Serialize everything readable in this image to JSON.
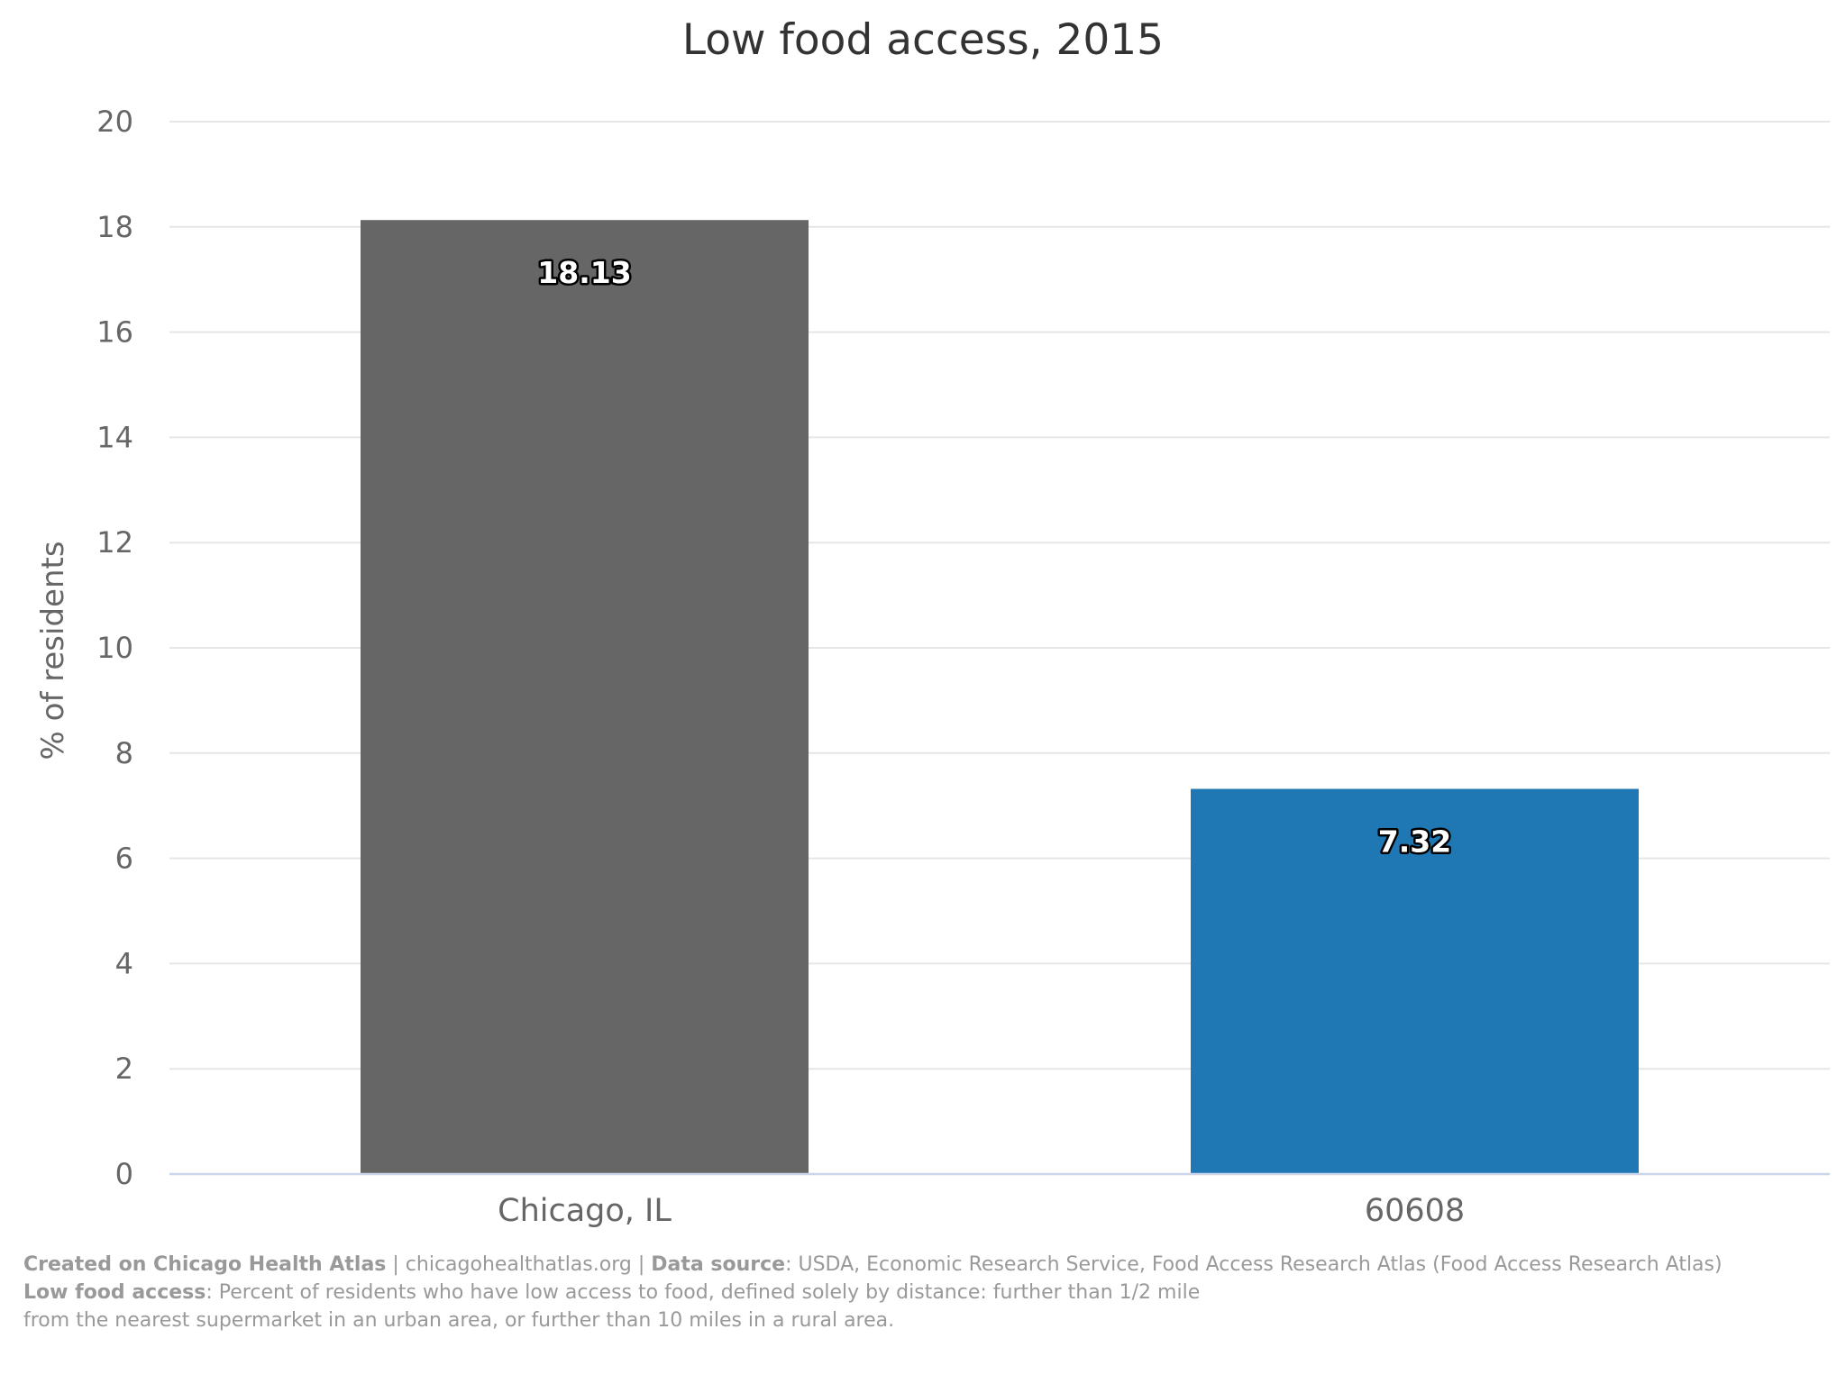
{
  "chart_data": {
    "type": "bar",
    "title": "Low food access, 2015",
    "xlabel": "",
    "ylabel": "% of residents",
    "ylim": [
      0,
      20
    ],
    "yticks": [
      "0",
      "2",
      "4",
      "6",
      "8",
      "10",
      "12",
      "14",
      "16",
      "18",
      "20"
    ],
    "categories": [
      "Chicago, IL",
      "60608"
    ],
    "values": [
      18.13,
      7.32
    ],
    "value_labels": [
      "18.13",
      "7.32"
    ],
    "colors": [
      "#666666",
      "#1f77b4"
    ],
    "grid": true,
    "legend": "none"
  },
  "credits": {
    "created_label": "Created on Chicago Health Atlas",
    "sep1": " | ",
    "site": "chicagohealthatlas.org",
    "sep2": " | ",
    "source_label": "Data source",
    "source_text": ": USDA, Economic Research Service, Food Access Research Atlas (Food Access Research Atlas)",
    "def_label": "Low food access",
    "def_line1": ": Percent of residents who have low access to food, defined solely by distance: further than 1/2 mile",
    "def_line2": "from the nearest supermarket in an urban area, or further than 10 miles in a rural area."
  }
}
